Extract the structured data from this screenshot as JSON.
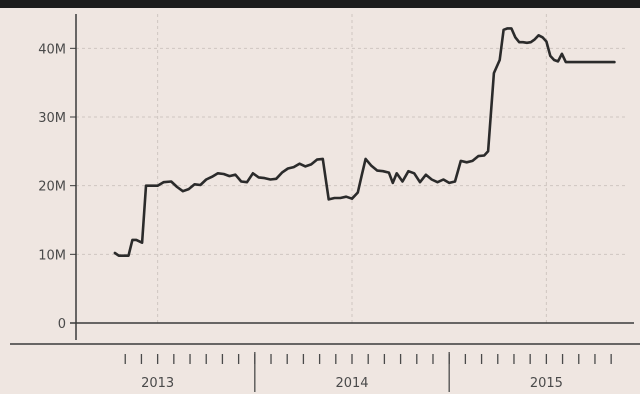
{
  "chart_data": {
    "type": "line",
    "title": "",
    "xlabel": "",
    "ylabel": "",
    "ylim": [
      0,
      45
    ],
    "yticks": [
      {
        "value": 0,
        "label": "0"
      },
      {
        "value": 10,
        "label": "10M"
      },
      {
        "value": 20,
        "label": "20M"
      },
      {
        "value": 30,
        "label": "30M"
      },
      {
        "value": 40,
        "label": "40M"
      }
    ],
    "x_range": [
      2012.58,
      2015.42
    ],
    "x_year_labels": [
      {
        "value": 2013.0,
        "label": "2013"
      },
      {
        "value": 2014.0,
        "label": "2014"
      },
      {
        "value": 2015.0,
        "label": "2015"
      }
    ],
    "x_year_boundaries": [
      2013.5,
      2014.5
    ],
    "grid": true,
    "line_color": "#2b2b2b",
    "series": [
      {
        "x": [
          2012.78,
          2012.8,
          2012.82,
          2012.85,
          2012.87,
          2012.89,
          2012.92,
          2012.94,
          2012.96,
          2013.0,
          2013.03,
          2013.07,
          2013.1,
          2013.13,
          2013.16,
          2013.19,
          2013.22,
          2013.25,
          2013.28,
          2013.31,
          2013.34,
          2013.37,
          2013.4,
          2013.43,
          2013.46,
          2013.49,
          2013.52,
          2013.55,
          2013.58,
          2013.61,
          2013.64,
          2013.67,
          2013.7,
          2013.73,
          2013.76,
          2013.79,
          2013.82,
          2013.85,
          2013.88,
          2013.91,
          2013.94,
          2013.97,
          2014.0,
          2014.03,
          2014.05,
          2014.07,
          2014.1,
          2014.13,
          2014.16,
          2014.19,
          2014.21,
          2014.23,
          2014.26,
          2014.29,
          2014.32,
          2014.35,
          2014.38,
          2014.41,
          2014.44,
          2014.47,
          2014.5,
          2014.53,
          2014.56,
          2014.59,
          2014.62,
          2014.65,
          2014.68,
          2014.7,
          2014.73,
          2014.76,
          2014.78,
          2014.8,
          2014.82,
          2014.84,
          2014.86,
          2014.88,
          2014.9,
          2014.92,
          2014.94,
          2014.96,
          2014.98,
          2015.0,
          2015.02,
          2015.04,
          2015.06,
          2015.08,
          2015.1,
          2015.12,
          2015.14,
          2015.16,
          2015.18,
          2015.2,
          2015.22,
          2015.24,
          2015.26,
          2015.28,
          2015.3,
          2015.32,
          2015.35
        ],
        "y": [
          10.2,
          9.8,
          9.8,
          9.8,
          12.1,
          12.1,
          11.7,
          20.0,
          20.0,
          20.0,
          20.5,
          20.6,
          19.8,
          19.2,
          19.5,
          20.2,
          20.1,
          20.9,
          21.3,
          21.8,
          21.7,
          21.4,
          21.6,
          20.6,
          20.5,
          21.8,
          21.2,
          21.1,
          20.9,
          21.0,
          21.9,
          22.5,
          22.7,
          23.2,
          22.8,
          23.1,
          23.8,
          23.9,
          18.0,
          18.2,
          18.2,
          18.4,
          18.1,
          19.0,
          21.5,
          23.9,
          22.9,
          22.2,
          22.1,
          21.9,
          20.4,
          21.8,
          20.6,
          22.1,
          21.8,
          20.5,
          21.6,
          20.9,
          20.5,
          20.9,
          20.4,
          20.6,
          23.6,
          23.4,
          23.6,
          24.3,
          24.4,
          25.0,
          36.4,
          38.3,
          42.7,
          42.9,
          42.9,
          41.6,
          40.9,
          40.9,
          40.8,
          40.9,
          41.3,
          41.9,
          41.6,
          41.0,
          38.9,
          38.3,
          38.1,
          39.2,
          38.0,
          38.0,
          38.0,
          38.0,
          38.0,
          38.0,
          38.0,
          38.0,
          38.0,
          38.0,
          38.0,
          38.0,
          38.0
        ]
      }
    ]
  }
}
